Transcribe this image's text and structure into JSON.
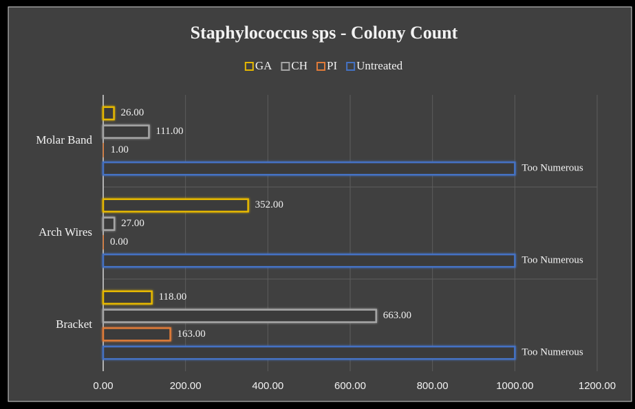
{
  "chart_data": {
    "type": "bar",
    "orientation": "horizontal",
    "title": "Staphylococcus sps - Colony Count",
    "categories": [
      "Molar Band",
      "Arch Wires",
      "Bracket"
    ],
    "series": [
      {
        "name": "GA",
        "color": "#e6b800",
        "values": [
          26,
          352,
          118
        ],
        "value_labels": [
          "26.00",
          "352.00",
          "118.00"
        ]
      },
      {
        "name": "CH",
        "color": "#a6a6a6",
        "values": [
          111,
          27,
          663
        ],
        "value_labels": [
          "111.00",
          "27.00",
          "663.00"
        ]
      },
      {
        "name": "PI",
        "color": "#e07b39",
        "values": [
          1,
          0,
          163
        ],
        "value_labels": [
          "1.00",
          "0.00",
          "163.00"
        ]
      },
      {
        "name": "Untreated",
        "color": "#4472c4",
        "values": [
          1000,
          1000,
          1000
        ],
        "value_labels": [
          "Too Numerous",
          "Too Numerous",
          "Too Numerous"
        ]
      }
    ],
    "xlim": [
      0,
      1200
    ],
    "xticks": [
      {
        "value": 0,
        "label": "0.00"
      },
      {
        "value": 200,
        "label": "200.00"
      },
      {
        "value": 400,
        "label": "400.00"
      },
      {
        "value": 600,
        "label": "600.00"
      },
      {
        "value": 800,
        "label": "800.00"
      },
      {
        "value": 1000,
        "label": "1000.00"
      },
      {
        "value": 1200,
        "label": "1200.00"
      }
    ],
    "grid": true,
    "legend": "top"
  }
}
